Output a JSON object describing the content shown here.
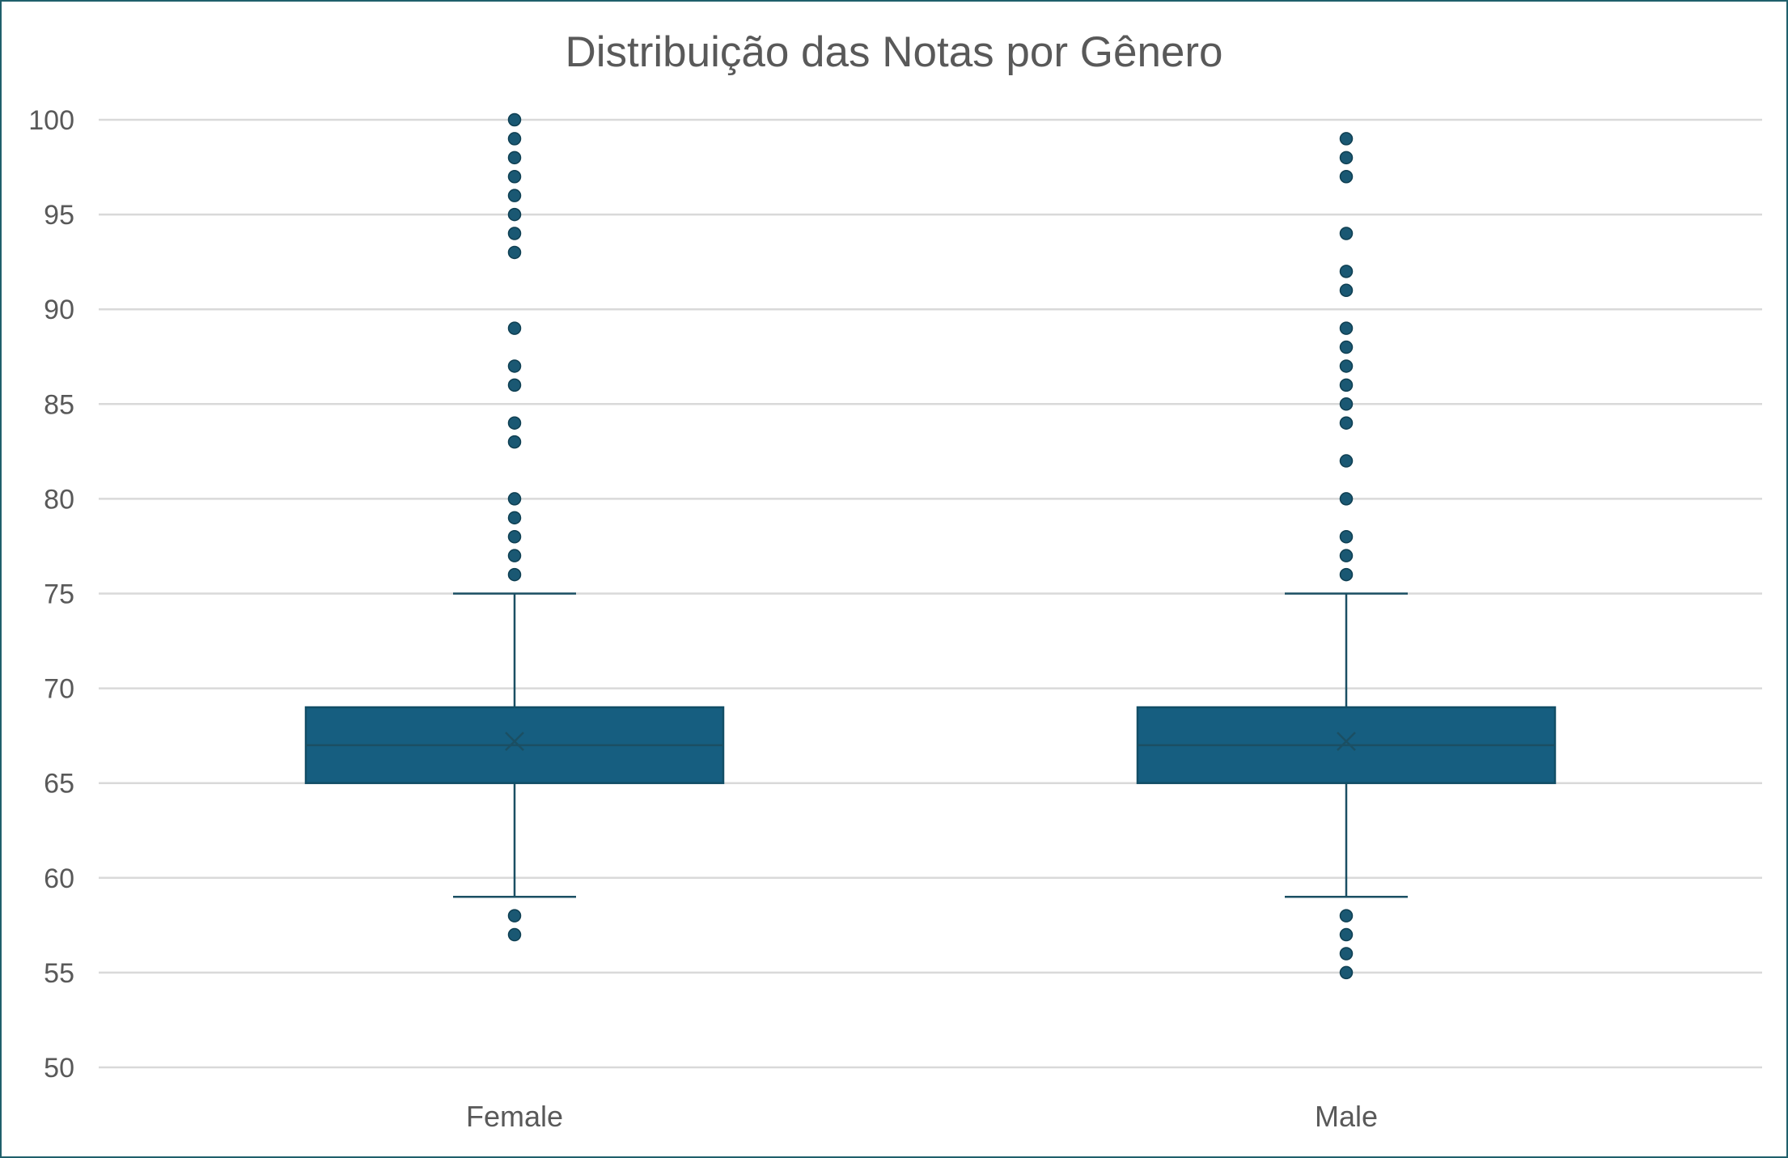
{
  "chart_data": {
    "type": "boxplot",
    "title": "Distribuição das Notas por Gênero",
    "xlabel": "",
    "ylabel": "",
    "ylim": [
      50,
      100
    ],
    "yticks": [
      50,
      55,
      60,
      65,
      70,
      75,
      80,
      85,
      90,
      95,
      100
    ],
    "grid": true,
    "legend": "none",
    "categories": [
      "Female",
      "Male"
    ],
    "series": [
      {
        "category": "Female",
        "whisker_low": 59,
        "q1": 65,
        "median": 67,
        "q3": 69,
        "whisker_high": 75,
        "mean": 67.2,
        "outliers": [
          57,
          58,
          76,
          77,
          78,
          79,
          80,
          83,
          84,
          86,
          87,
          89,
          93,
          94,
          95,
          96,
          97,
          98,
          99,
          100
        ]
      },
      {
        "category": "Male",
        "whisker_low": 59,
        "q1": 65,
        "median": 67,
        "q3": 69,
        "whisker_high": 75,
        "mean": 67.2,
        "outliers": [
          55,
          56,
          57,
          58,
          76,
          77,
          78,
          80,
          82,
          84,
          85,
          86,
          87,
          88,
          89,
          91,
          92,
          94,
          97,
          98,
          99
        ]
      }
    ],
    "colors": {
      "box_fill": "#165e80",
      "box_edge": "#124e66",
      "line": "#1b4f63",
      "outlier": "#1a5873",
      "grid": "#d9d9d9",
      "text": "#595959",
      "border": "#1f5f6b"
    }
  }
}
